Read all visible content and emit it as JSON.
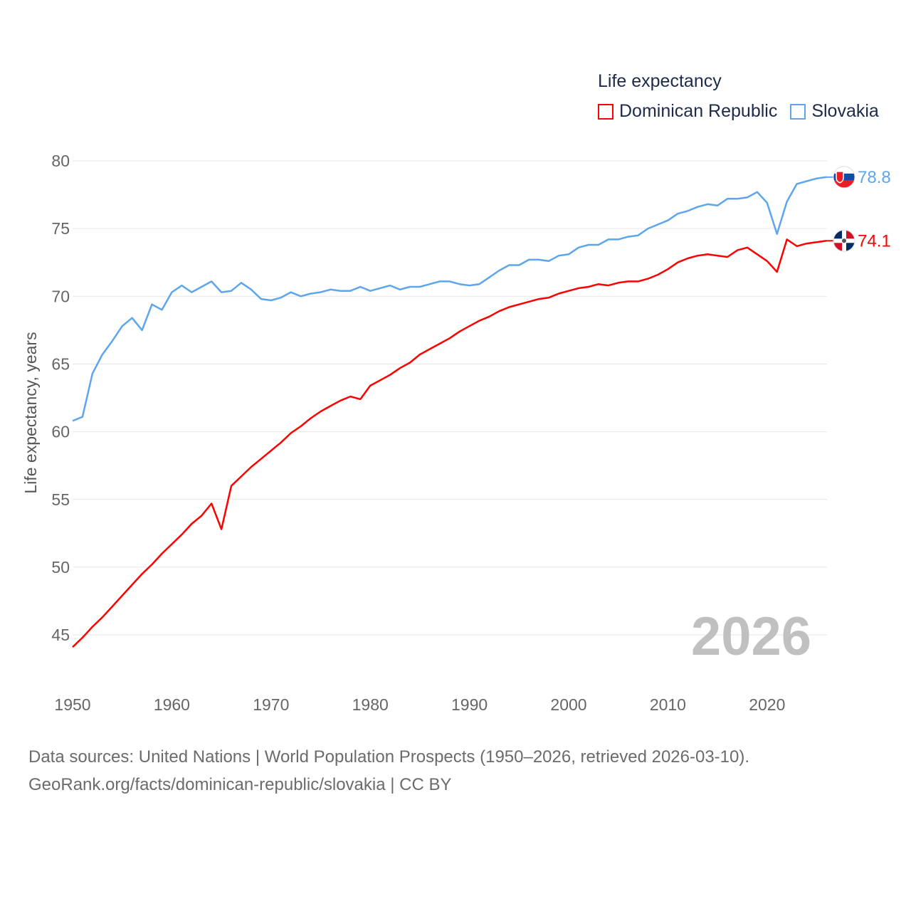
{
  "chart_data": {
    "type": "line",
    "title": "",
    "legend_title": "Life expectancy",
    "legend_placement": "top-right",
    "ylabel": "Life expectancy, years",
    "xlabel": "",
    "xlim": [
      1950,
      2026
    ],
    "ylim": [
      43,
      81
    ],
    "y_ticks": [
      45,
      50,
      55,
      60,
      65,
      70,
      75,
      80
    ],
    "x_ticks": [
      1950,
      1960,
      1970,
      1980,
      1990,
      2000,
      2010,
      2020
    ],
    "grid": true,
    "year_label": "2026",
    "x": [
      1950,
      1951,
      1952,
      1953,
      1954,
      1955,
      1956,
      1957,
      1958,
      1959,
      1960,
      1961,
      1962,
      1963,
      1964,
      1965,
      1966,
      1967,
      1968,
      1969,
      1970,
      1971,
      1972,
      1973,
      1974,
      1975,
      1976,
      1977,
      1978,
      1979,
      1980,
      1981,
      1982,
      1983,
      1984,
      1985,
      1986,
      1987,
      1988,
      1989,
      1990,
      1991,
      1992,
      1993,
      1994,
      1995,
      1996,
      1997,
      1998,
      1999,
      2000,
      2001,
      2002,
      2003,
      2004,
      2005,
      2006,
      2007,
      2008,
      2009,
      2010,
      2011,
      2012,
      2013,
      2014,
      2015,
      2016,
      2017,
      2018,
      2019,
      2020,
      2021,
      2022,
      2023,
      2024,
      2025,
      2026
    ],
    "series": [
      {
        "name": "Dominican Republic",
        "color": "#ff0000",
        "end_label": "74.1",
        "values": [
          44.1,
          44.8,
          45.6,
          46.3,
          47.1,
          47.9,
          48.7,
          49.5,
          50.2,
          51.0,
          51.7,
          52.4,
          53.2,
          53.8,
          54.7,
          52.8,
          56.0,
          56.7,
          57.4,
          58.0,
          58.6,
          59.2,
          59.9,
          60.4,
          61.0,
          61.5,
          61.9,
          62.3,
          62.6,
          62.4,
          63.4,
          63.8,
          64.2,
          64.7,
          65.1,
          65.7,
          66.1,
          66.5,
          66.9,
          67.4,
          67.8,
          68.2,
          68.5,
          68.9,
          69.2,
          69.4,
          69.6,
          69.8,
          69.9,
          70.2,
          70.4,
          70.6,
          70.7,
          70.9,
          70.8,
          71.0,
          71.1,
          71.1,
          71.3,
          71.6,
          72.0,
          72.5,
          72.8,
          73.0,
          73.1,
          73.0,
          72.9,
          73.4,
          73.6,
          73.1,
          72.6,
          71.8,
          74.2,
          73.7,
          73.9,
          74.0,
          74.1
        ]
      },
      {
        "name": "Slovakia",
        "color": "#5da5ec",
        "end_label": "78.8",
        "values": [
          60.8,
          61.1,
          64.3,
          65.7,
          66.7,
          67.8,
          68.4,
          67.5,
          69.4,
          69.0,
          70.3,
          70.8,
          70.3,
          70.7,
          71.1,
          70.3,
          70.4,
          71.0,
          70.5,
          69.8,
          69.7,
          69.9,
          70.3,
          70.0,
          70.2,
          70.3,
          70.5,
          70.4,
          70.4,
          70.7,
          70.4,
          70.6,
          70.8,
          70.5,
          70.7,
          70.7,
          70.9,
          71.1,
          71.1,
          70.9,
          70.8,
          70.9,
          71.4,
          71.9,
          72.3,
          72.3,
          72.7,
          72.7,
          72.6,
          73.0,
          73.1,
          73.6,
          73.8,
          73.8,
          74.2,
          74.2,
          74.4,
          74.5,
          75.0,
          75.3,
          75.6,
          76.1,
          76.3,
          76.6,
          76.8,
          76.7,
          77.2,
          77.2,
          77.3,
          77.7,
          76.9,
          74.6,
          77.0,
          78.3,
          78.5,
          78.7,
          78.8
        ]
      }
    ]
  },
  "source": {
    "line1": "Data sources: United Nations | World Population Prospects (1950–2026, retrieved 2026-03-10).",
    "line2": "GeoRank.org/facts/dominican-republic/slovakia | CC BY"
  }
}
